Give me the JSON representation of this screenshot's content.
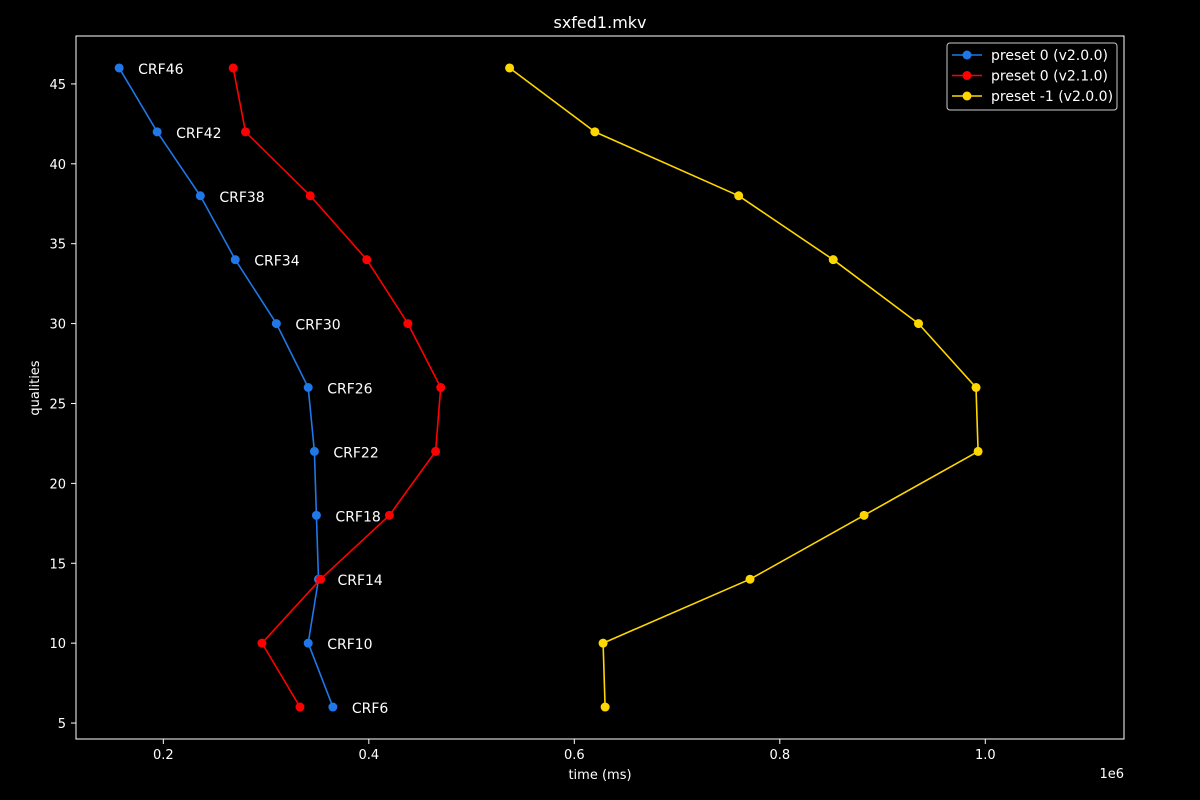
{
  "chart_data": {
    "type": "line",
    "title": "sxfed1.mkv",
    "xlabel": "time (ms)",
    "ylabel": "qualities",
    "x_offset_text": "1e6",
    "xlim": [
      0.115,
      1.135
    ],
    "ylim": [
      4.0,
      48.0
    ],
    "xticks": [
      0.2,
      0.4,
      0.6,
      0.8,
      1.0
    ],
    "xtick_labels": [
      "0.2",
      "0.4",
      "0.6",
      "0.8",
      "1.0"
    ],
    "yticks": [
      5,
      10,
      15,
      20,
      25,
      30,
      35,
      40,
      45
    ],
    "ytick_labels": [
      "5",
      "10",
      "15",
      "20",
      "25",
      "30",
      "35",
      "40",
      "45"
    ],
    "grid": false,
    "legend_position": "top-right",
    "background": "#000000",
    "foreground": "#ffffff",
    "series": [
      {
        "name": "preset 0 (v2.0.0)",
        "color": "#1f77e8",
        "x": [
          0.157,
          0.194,
          0.236,
          0.27,
          0.31,
          0.341,
          0.347,
          0.349,
          0.351,
          0.341,
          0.365
        ],
        "y": [
          46,
          42,
          38,
          34,
          30,
          26,
          22,
          18,
          14,
          10,
          6
        ]
      },
      {
        "name": "preset 0 (v2.1.0)",
        "color": "#ff0000",
        "x": [
          0.268,
          0.28,
          0.343,
          0.398,
          0.438,
          0.47,
          0.465,
          0.42,
          0.353,
          0.296,
          0.333
        ],
        "y": [
          46,
          42,
          38,
          34,
          30,
          26,
          22,
          18,
          14,
          10,
          6
        ]
      },
      {
        "name": "preset -1 (v2.0.0)",
        "color": "#ffd700",
        "x": [
          0.537,
          0.62,
          0.76,
          0.852,
          0.935,
          0.991,
          0.993,
          0.882,
          0.771,
          0.628,
          0.63
        ],
        "y": [
          46,
          42,
          38,
          34,
          30,
          26,
          22,
          18,
          14,
          10,
          6
        ]
      }
    ],
    "annotations": [
      {
        "text": "CRF46",
        "series": 0,
        "index": 0
      },
      {
        "text": "CRF42",
        "series": 0,
        "index": 1
      },
      {
        "text": "CRF38",
        "series": 0,
        "index": 2
      },
      {
        "text": "CRF34",
        "series": 0,
        "index": 3
      },
      {
        "text": "CRF30",
        "series": 0,
        "index": 4
      },
      {
        "text": "CRF26",
        "series": 0,
        "index": 5
      },
      {
        "text": "CRF22",
        "series": 0,
        "index": 6
      },
      {
        "text": "CRF18",
        "series": 0,
        "index": 7
      },
      {
        "text": "CRF14",
        "series": 0,
        "index": 8
      },
      {
        "text": "CRF10",
        "series": 0,
        "index": 9
      },
      {
        "text": "CRF6",
        "series": 0,
        "index": 10
      }
    ]
  }
}
